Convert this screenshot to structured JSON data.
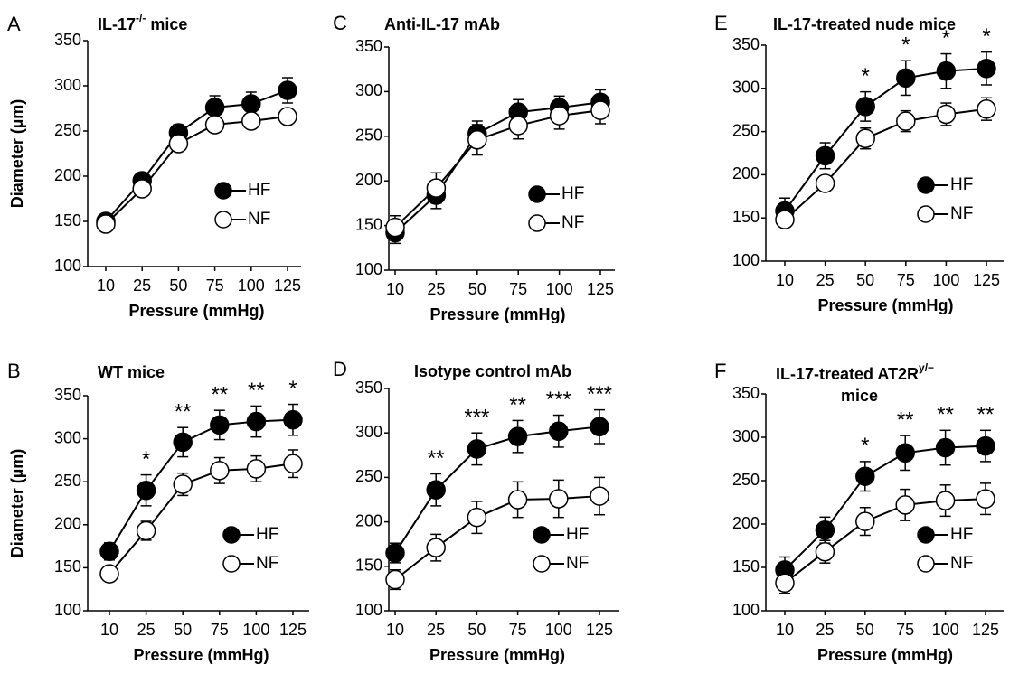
{
  "colors": {
    "hf_fill": "#000000",
    "nf_fill": "#ffffff",
    "stroke": "#000000"
  },
  "chart_data": [
    {
      "panel": "A",
      "title": "IL-17",
      "title_sup": "-/-",
      "title_rest": " mice",
      "type": "line",
      "xlabel": "Pressure (mmHg)",
      "ylabel": "Diameter (µm)",
      "categories": [
        "10",
        "25",
        "50",
        "75",
        "100",
        "125"
      ],
      "ylim": [
        100,
        350
      ],
      "yticks": [
        100,
        150,
        200,
        250,
        300,
        350
      ],
      "legend": "lower-right",
      "series": [
        {
          "name": "HF",
          "marker": "filled",
          "values": [
            150,
            195,
            248,
            276,
            280,
            295
          ],
          "errors": [
            5,
            6,
            9,
            13,
            13,
            14
          ]
        },
        {
          "name": "NF",
          "marker": "open",
          "values": [
            147,
            186,
            236,
            257,
            261,
            266
          ],
          "errors": [
            4,
            5,
            6,
            5,
            8,
            8
          ]
        }
      ],
      "significance": [
        "",
        "",
        "",
        "",
        "",
        ""
      ]
    },
    {
      "panel": "B",
      "title": "WT mice",
      "title_sup": "",
      "title_rest": "",
      "type": "line",
      "xlabel": "Pressure (mmHg)",
      "ylabel": "Diameter (µm)",
      "categories": [
        "10",
        "25",
        "50",
        "75",
        "100",
        "125"
      ],
      "ylim": [
        100,
        350
      ],
      "yticks": [
        100,
        150,
        200,
        250,
        300,
        350
      ],
      "legend": "lower-right",
      "series": [
        {
          "name": "HF",
          "marker": "filled",
          "values": [
            169,
            240,
            296,
            316,
            320,
            322
          ],
          "errors": [
            10,
            18,
            17,
            17,
            18,
            18
          ]
        },
        {
          "name": "NF",
          "marker": "open",
          "values": [
            143,
            193,
            247,
            263,
            265,
            271
          ],
          "errors": [
            8,
            11,
            13,
            15,
            15,
            16
          ]
        }
      ],
      "significance": [
        "",
        "*",
        "**",
        "**",
        "**",
        "*"
      ]
    },
    {
      "panel": "C",
      "title": "Anti-IL-17 mAb",
      "title_sup": "",
      "title_rest": "",
      "type": "line",
      "xlabel": "Pressure (mmHg)",
      "ylabel": "",
      "categories": [
        "10",
        "25",
        "50",
        "75",
        "100",
        "125"
      ],
      "ylim": [
        100,
        350
      ],
      "yticks": [
        100,
        150,
        200,
        250,
        300,
        350
      ],
      "legend": "lower-right",
      "series": [
        {
          "name": "HF",
          "marker": "filled",
          "values": [
            142,
            184,
            253,
            277,
            282,
            288
          ],
          "errors": [
            12,
            15,
            14,
            14,
            13,
            14
          ]
        },
        {
          "name": "NF",
          "marker": "open",
          "values": [
            148,
            192,
            246,
            262,
            273,
            279
          ],
          "errors": [
            13,
            17,
            17,
            15,
            15,
            15
          ]
        }
      ],
      "significance": [
        "",
        "",
        "",
        "",
        "",
        ""
      ]
    },
    {
      "panel": "D",
      "title": "Isotype control mAb",
      "title_sup": "",
      "title_rest": "",
      "type": "line",
      "xlabel": "Pressure (mmHg)",
      "ylabel": "",
      "categories": [
        "10",
        "25",
        "50",
        "75",
        "100",
        "125"
      ],
      "ylim": [
        100,
        350
      ],
      "yticks": [
        100,
        150,
        200,
        250,
        300,
        350
      ],
      "legend": "lower-right",
      "series": [
        {
          "name": "HF",
          "marker": "filled",
          "values": [
            165,
            236,
            282,
            296,
            302,
            307
          ],
          "errors": [
            11,
            18,
            18,
            18,
            18,
            19
          ]
        },
        {
          "name": "NF",
          "marker": "open",
          "values": [
            135,
            171,
            205,
            225,
            226,
            229
          ],
          "errors": [
            11,
            15,
            18,
            20,
            21,
            21
          ]
        }
      ],
      "significance": [
        "",
        "**",
        "***",
        "**",
        "***",
        "***"
      ]
    },
    {
      "panel": "E",
      "title": "IL-17-treated nude mice",
      "title_sup": "",
      "title_rest": "",
      "type": "line",
      "xlabel": "Pressure (mmHg)",
      "ylabel": "",
      "categories": [
        "10",
        "25",
        "50",
        "75",
        "100",
        "125"
      ],
      "ylim": [
        100,
        350
      ],
      "yticks": [
        100,
        150,
        200,
        250,
        300,
        350
      ],
      "legend": "lower-right",
      "series": [
        {
          "name": "HF",
          "marker": "filled",
          "values": [
            158,
            222,
            279,
            312,
            320,
            323
          ],
          "errors": [
            15,
            15,
            17,
            20,
            20,
            19
          ]
        },
        {
          "name": "NF",
          "marker": "open",
          "values": [
            148,
            190,
            242,
            262,
            270,
            276
          ],
          "errors": [
            8,
            8,
            12,
            12,
            13,
            13
          ]
        }
      ],
      "significance": [
        "",
        "",
        "*",
        "*",
        "*",
        "*"
      ]
    },
    {
      "panel": "F",
      "title": "IL-17-treated AT2R",
      "title_sup": "y/−",
      "title_rest": "",
      "title_line2": "mice",
      "type": "line",
      "xlabel": "Pressure (mmHg)",
      "ylabel": "",
      "categories": [
        "10",
        "25",
        "50",
        "75",
        "100",
        "125"
      ],
      "ylim": [
        100,
        350
      ],
      "yticks": [
        100,
        150,
        200,
        250,
        300,
        350
      ],
      "legend": "lower-right",
      "series": [
        {
          "name": "HF",
          "marker": "filled",
          "values": [
            147,
            193,
            255,
            282,
            288,
            290
          ],
          "errors": [
            15,
            15,
            17,
            20,
            20,
            18
          ]
        },
        {
          "name": "NF",
          "marker": "open",
          "values": [
            132,
            168,
            203,
            222,
            227,
            229
          ],
          "errors": [
            12,
            13,
            16,
            18,
            18,
            18
          ]
        }
      ],
      "significance": [
        "",
        "",
        "*",
        "**",
        "**",
        "**"
      ]
    }
  ]
}
